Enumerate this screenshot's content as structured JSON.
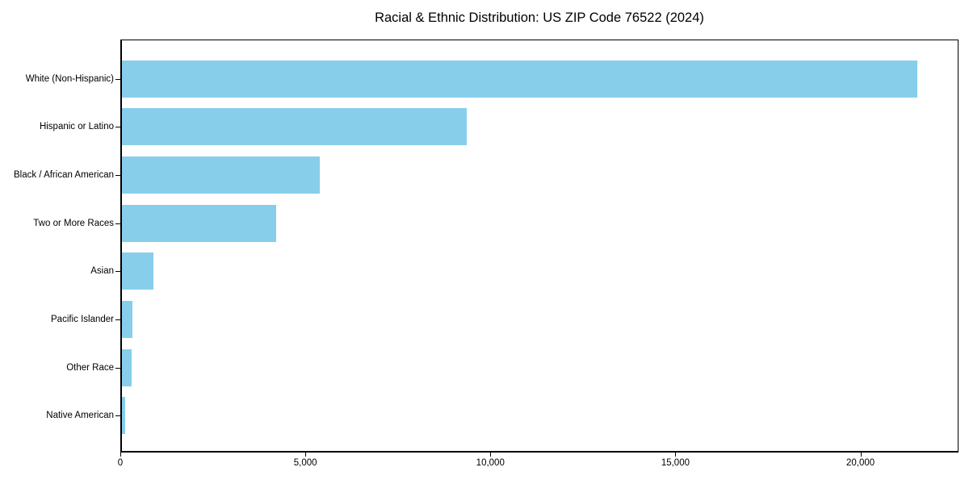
{
  "chart_data": {
    "type": "bar",
    "orientation": "horizontal",
    "title": "Racial & Ethnic Distribution: US ZIP Code 76522 (2024)",
    "categories": [
      "White (Non-Hispanic)",
      "Hispanic or Latino",
      "Black / African American",
      "Two or More Races",
      "Asian",
      "Pacific Islander",
      "Other Race",
      "Native American"
    ],
    "values": [
      21550,
      9340,
      5360,
      4170,
      860,
      295,
      255,
      90
    ],
    "bar_color": "#87CEEB",
    "xlabel": "",
    "ylabel": "",
    "xlim": [
      0,
      22650
    ],
    "xticks": [
      0,
      5000,
      10000,
      15000,
      20000
    ],
    "xtick_labels": [
      "0",
      "5,000",
      "10,000",
      "15,000",
      "20,000"
    ],
    "grid": false,
    "legend": "none",
    "background_color": "#ffffff",
    "text_color": "#000000"
  }
}
